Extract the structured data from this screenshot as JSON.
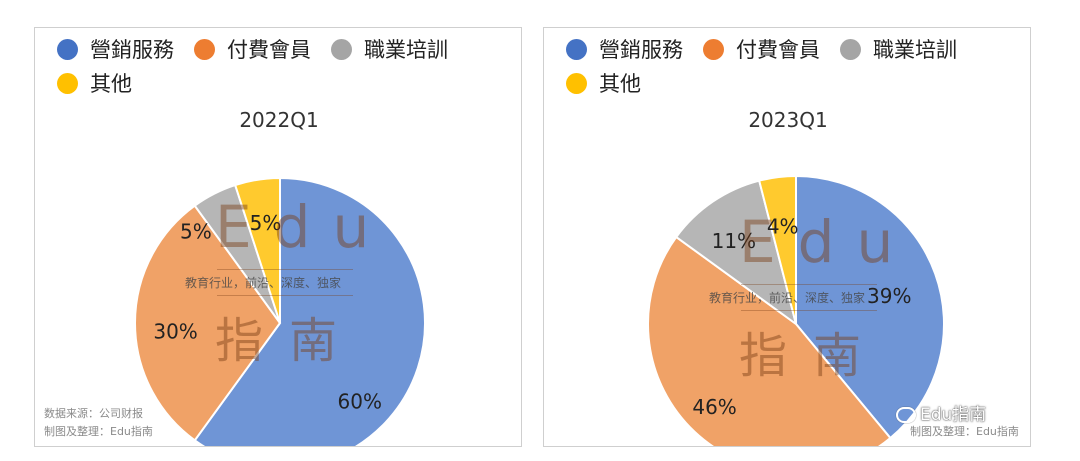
{
  "legend": [
    {
      "name": "營銷服務",
      "color": "#4472c4"
    },
    {
      "name": "付費會員",
      "color": "#ed7d31"
    },
    {
      "name": "職業培訓",
      "color": "#a5a5a5"
    },
    {
      "name": "其他",
      "color": "#ffc000"
    }
  ],
  "watermark": {
    "brand": "Edu",
    "tagline": "教育行业，前沿、深度、独家",
    "cn": "指南"
  },
  "left_source": {
    "line1": "数据来源：公司财报",
    "line2": "制图及整理：Edu指南"
  },
  "right_source": {
    "line2": "制图及整理：Edu指南"
  },
  "account_name": "Edu指南",
  "chart_data": [
    {
      "type": "pie",
      "title": "2022Q1",
      "categories": [
        "營銷服務",
        "付費會員",
        "職業培訓",
        "其他"
      ],
      "values": [
        60,
        30,
        5,
        5
      ],
      "labels": [
        "60%",
        "30%",
        "5%",
        "5%"
      ]
    },
    {
      "type": "pie",
      "title": "2023Q1",
      "categories": [
        "營銷服務",
        "付費會員",
        "職業培訓",
        "其他"
      ],
      "values": [
        39,
        46,
        11,
        4
      ],
      "labels": [
        "39%",
        "46%",
        "11%",
        "4%"
      ]
    }
  ]
}
